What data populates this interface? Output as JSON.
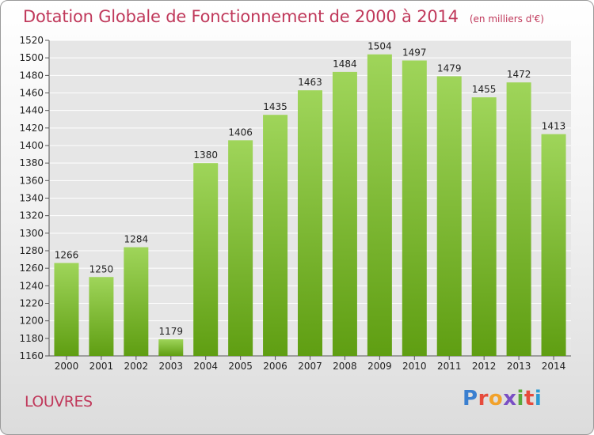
{
  "title": "Dotation Globale de Fonctionnement de 2000 à 2014",
  "unit_note": "(en milliers d'€)",
  "commune": "LOUVRES",
  "brand": {
    "letters": [
      "P",
      "r",
      "o",
      "x",
      "i",
      "t",
      "i"
    ]
  },
  "colors": {
    "bar_light": "#9fd55a",
    "bar_dark": "#5f9e12",
    "title": "#c0395b",
    "grid": "#ffffff"
  },
  "chart_data": {
    "type": "bar",
    "title": "Dotation Globale de Fonctionnement de 2000 à 2014",
    "subtitle": "(en milliers d'€)",
    "categories": [
      "2000",
      "2001",
      "2002",
      "2003",
      "2004",
      "2005",
      "2006",
      "2007",
      "2008",
      "2009",
      "2010",
      "2011",
      "2012",
      "2013",
      "2014"
    ],
    "values": [
      1266,
      1250,
      1284,
      1179,
      1380,
      1406,
      1435,
      1463,
      1484,
      1504,
      1497,
      1479,
      1455,
      1472,
      1413
    ],
    "ylim": [
      1160,
      1520
    ],
    "yticks": [
      1160,
      1180,
      1200,
      1220,
      1240,
      1260,
      1280,
      1300,
      1320,
      1340,
      1360,
      1380,
      1400,
      1420,
      1440,
      1460,
      1480,
      1500,
      1520
    ],
    "grid": true,
    "xlabel": "",
    "ylabel": ""
  }
}
